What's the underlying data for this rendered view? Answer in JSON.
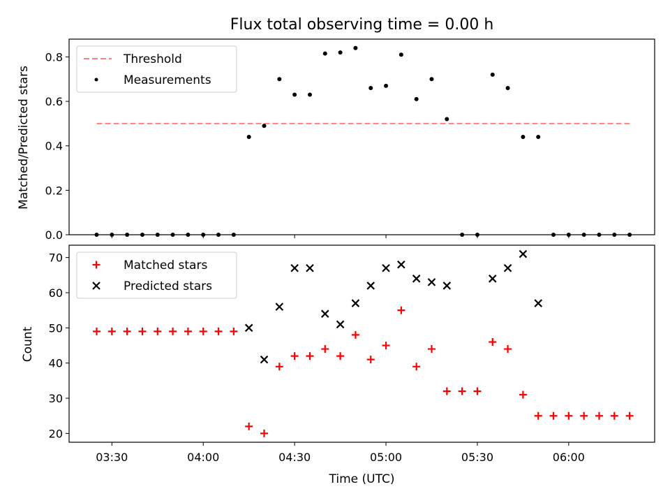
{
  "chart_data": [
    {
      "type": "scatter",
      "title": "Flux total observing time = 0.00 h",
      "xlabel": "",
      "ylabel": "Matched/Predicted stars",
      "ylim": [
        0,
        0.88
      ],
      "yticks": [
        "0.0",
        "0.2",
        "0.4",
        "0.6",
        "0.8"
      ],
      "ytick_values": [
        0,
        0.2,
        0.4,
        0.6,
        0.8
      ],
      "legend_position": "upper-left",
      "series": [
        {
          "name": "Threshold",
          "style": "dashed-line",
          "color": "#ff8080",
          "x": [
            "03:25",
            "06:20"
          ],
          "values": [
            0.5,
            0.5
          ]
        },
        {
          "name": "Measurements",
          "style": "dot",
          "color": "#000000",
          "x": [
            "03:25",
            "03:30",
            "03:35",
            "03:40",
            "03:45",
            "03:50",
            "03:55",
            "04:00",
            "04:05",
            "04:10",
            "04:15",
            "04:20",
            "04:25",
            "04:30",
            "04:35",
            "04:40",
            "04:45",
            "04:50",
            "04:55",
            "05:00",
            "05:05",
            "05:10",
            "05:15",
            "05:20",
            "05:25",
            "05:30",
            "05:35",
            "05:40",
            "05:45",
            "05:50",
            "05:55",
            "06:00",
            "06:05",
            "06:10",
            "06:15",
            "06:20"
          ],
          "values": [
            0,
            0,
            0,
            0,
            0,
            0,
            0,
            0,
            0,
            0,
            0.44,
            0.49,
            0.7,
            0.63,
            0.63,
            0.815,
            0.82,
            0.84,
            0.66,
            0.67,
            0.81,
            0.61,
            0.7,
            0.52,
            0,
            0,
            0.72,
            0.66,
            0.44,
            0.44,
            0,
            0,
            0,
            0,
            0,
            0
          ]
        }
      ]
    },
    {
      "type": "scatter",
      "title": "",
      "xlabel": "Time (UTC)",
      "ylabel": "Count",
      "ylim": [
        17.5,
        73.5
      ],
      "yticks": [
        "20",
        "30",
        "40",
        "50",
        "60",
        "70"
      ],
      "ytick_values": [
        20,
        30,
        40,
        50,
        60,
        70
      ],
      "xticks": [
        "03:30",
        "04:00",
        "04:30",
        "05:00",
        "05:30",
        "06:00"
      ],
      "legend_position": "upper-left",
      "series": [
        {
          "name": "Matched stars",
          "marker": "plus",
          "color": "#ff0000",
          "x": [
            "03:25",
            "03:30",
            "03:35",
            "03:40",
            "03:45",
            "03:50",
            "03:55",
            "04:00",
            "04:05",
            "04:10",
            "04:15",
            "04:20",
            "04:25",
            "04:30",
            "04:35",
            "04:40",
            "04:45",
            "04:50",
            "04:55",
            "05:00",
            "05:05",
            "05:10",
            "05:15",
            "05:20",
            "05:25",
            "05:30",
            "05:35",
            "05:40",
            "05:45",
            "05:50",
            "05:55",
            "06:00",
            "06:05",
            "06:10",
            "06:15",
            "06:20"
          ],
          "values": [
            49,
            49,
            49,
            49,
            49,
            49,
            49,
            49,
            49,
            49,
            22,
            20,
            39,
            42,
            42,
            44,
            42,
            48,
            41,
            45,
            55,
            39,
            44,
            32,
            32,
            32,
            46,
            44,
            31,
            25,
            25,
            25,
            25,
            25,
            25,
            25
          ]
        },
        {
          "name": "Predicted stars",
          "marker": "x",
          "color": "#000000",
          "x": [
            "04:15",
            "04:20",
            "04:25",
            "04:30",
            "04:35",
            "04:40",
            "04:45",
            "04:50",
            "04:55",
            "05:00",
            "05:05",
            "05:10",
            "05:15",
            "05:20",
            "05:35",
            "05:40",
            "05:45",
            "05:50"
          ],
          "values": [
            50,
            41,
            56,
            67,
            67,
            54,
            51,
            57,
            62,
            67,
            68,
            64,
            63,
            62,
            64,
            67,
            71,
            57
          ]
        }
      ]
    }
  ]
}
